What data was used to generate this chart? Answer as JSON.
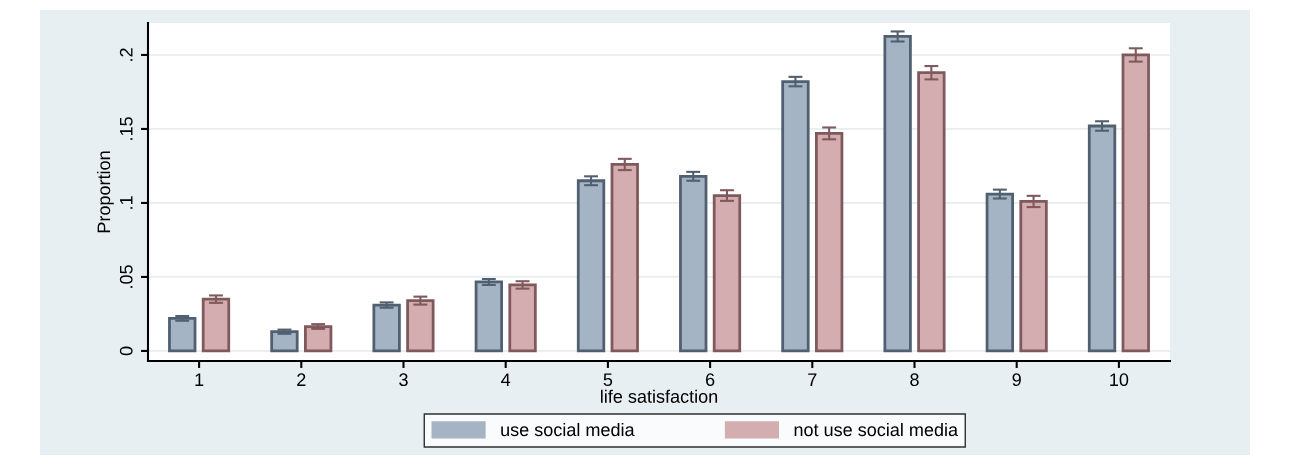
{
  "chart_data": {
    "type": "bar",
    "xlabel": "life satisfaction",
    "ylabel": "Proportion",
    "categories": [
      "1",
      "2",
      "3",
      "4",
      "5",
      "6",
      "7",
      "8",
      "9",
      "10"
    ],
    "series": [
      {
        "name": "use social media",
        "color": "#a5b4c4",
        "values": [
          0.022,
          0.013,
          0.031,
          0.0466,
          0.115,
          0.118,
          0.182,
          0.2125,
          0.106,
          0.152
        ],
        "errors": [
          0.0016,
          0.0014,
          0.0018,
          0.002,
          0.003,
          0.003,
          0.0032,
          0.0034,
          0.003,
          0.0032
        ]
      },
      {
        "name": "not use social media",
        "color": "#d3adb0",
        "values": [
          0.035,
          0.0165,
          0.034,
          0.0446,
          0.126,
          0.105,
          0.147,
          0.188,
          0.101,
          0.2
        ],
        "errors": [
          0.0025,
          0.0016,
          0.0027,
          0.0025,
          0.0038,
          0.0036,
          0.004,
          0.0045,
          0.0038,
          0.0045
        ]
      }
    ],
    "ylim": [
      -0.0068,
      0.2216
    ],
    "yticks": [
      {
        "value": 0,
        "label": "0"
      },
      {
        "value": 0.05,
        "label": ".05"
      },
      {
        "value": 0.1,
        "label": ".1"
      },
      {
        "value": 0.15,
        "label": ".15"
      },
      {
        "value": 0.2,
        "label": ".2"
      }
    ],
    "grid": "y",
    "legend": "bottom"
  }
}
